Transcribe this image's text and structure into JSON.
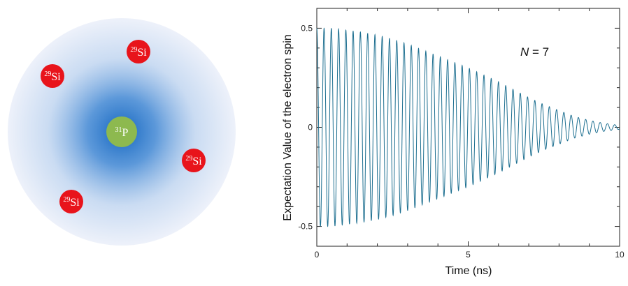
{
  "diagram": {
    "nucleus": {
      "sup": "31",
      "element": "P",
      "color": "#8db94f"
    },
    "neighbors": [
      {
        "sup": "29",
        "element": "Si"
      },
      {
        "sup": "29",
        "element": "Si"
      },
      {
        "sup": "29",
        "element": "Si"
      },
      {
        "sup": "29",
        "element": "Si"
      }
    ],
    "neighbor_color": "#e8141b",
    "cloud_color": "#1f6fc5"
  },
  "chart_data": {
    "type": "line",
    "title": "",
    "xlabel": "Time (ns)",
    "ylabel": "Expectation Value of the electron spin",
    "xlim": [
      0,
      10
    ],
    "ylim": [
      -0.6,
      0.6
    ],
    "xticks": [
      0,
      5,
      10
    ],
    "yticks": [
      -0.5,
      0,
      0.5
    ],
    "xtick_labels": [
      "0",
      "5",
      "10"
    ],
    "ytick_labels": [
      "-0.5",
      "0",
      "0.5"
    ],
    "annotation": {
      "var": "N",
      "rest": " = 7"
    },
    "grid": false,
    "line_color": "#1d6f90",
    "series": [
      {
        "x": [
          0,
          0.5,
          1,
          1.5,
          2,
          2.5,
          3,
          3.5,
          4,
          4.5,
          5,
          5.5,
          6,
          6.5,
          7,
          7.5,
          8,
          8.5,
          9,
          9.5,
          10
        ],
        "envelope": [
          0.5,
          0.5,
          0.49,
          0.48,
          0.465,
          0.445,
          0.42,
          0.39,
          0.36,
          0.33,
          0.3,
          0.265,
          0.23,
          0.19,
          0.15,
          0.115,
          0.085,
          0.055,
          0.035,
          0.02,
          0.01
        ],
        "oscillation_period_ns": 0.24
      }
    ]
  }
}
